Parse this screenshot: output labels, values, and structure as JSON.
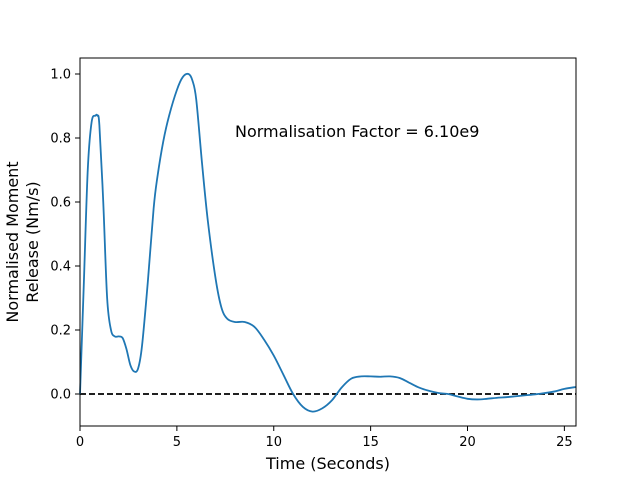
{
  "chart_data": {
    "type": "line",
    "title": "",
    "xlabel": "Time (Seconds)",
    "ylabel_lines": [
      "Normalised Moment",
      "Release (Nm/s)"
    ],
    "xlim": [
      0,
      25.6
    ],
    "ylim": [
      -0.1,
      1.05
    ],
    "xticks": [
      0,
      5,
      10,
      15,
      20,
      25
    ],
    "yticks": [
      0.0,
      0.2,
      0.4,
      0.6,
      0.8,
      1.0
    ],
    "xtick_labels": [
      "0",
      "5",
      "10",
      "15",
      "20",
      "25"
    ],
    "ytick_labels": [
      "0.0",
      "0.2",
      "0.4",
      "0.6",
      "0.8",
      "1.0"
    ],
    "grid": false,
    "annotation": "Normalisation Factor = 6.10e9",
    "reference_line": {
      "y": 0.0,
      "style": "dashed",
      "color": "#000000"
    },
    "series": [
      {
        "color": "#1f77b4",
        "x": [
          0,
          0.2,
          0.4,
          0.6,
          0.8,
          0.9,
          1.0,
          1.2,
          1.4,
          1.6,
          1.8,
          2.0,
          2.2,
          2.4,
          2.6,
          2.8,
          3.0,
          3.2,
          3.5,
          3.8,
          4.0,
          4.3,
          4.6,
          5.0,
          5.3,
          5.6,
          5.8,
          6.0,
          6.3,
          6.6,
          7.0,
          7.3,
          7.6,
          8.0,
          8.5,
          9.0,
          9.5,
          10.0,
          10.5,
          11.0,
          11.5,
          12.0,
          12.5,
          13.0,
          13.5,
          14.0,
          14.5,
          15.0,
          15.5,
          16.0,
          16.5,
          17.0,
          17.5,
          18.0,
          18.5,
          19.0,
          19.5,
          20.0,
          20.5,
          21.0,
          21.5,
          22.0,
          22.5,
          23.0,
          23.5,
          24.0,
          24.5,
          25.0,
          25.6
        ],
        "y": [
          0.0,
          0.35,
          0.7,
          0.85,
          0.87,
          0.87,
          0.84,
          0.6,
          0.3,
          0.2,
          0.18,
          0.18,
          0.175,
          0.14,
          0.09,
          0.07,
          0.08,
          0.15,
          0.35,
          0.58,
          0.68,
          0.79,
          0.87,
          0.95,
          0.99,
          1.0,
          0.98,
          0.92,
          0.72,
          0.54,
          0.36,
          0.27,
          0.235,
          0.225,
          0.225,
          0.21,
          0.17,
          0.12,
          0.06,
          0.0,
          -0.04,
          -0.055,
          -0.045,
          -0.02,
          0.02,
          0.048,
          0.055,
          0.055,
          0.054,
          0.055,
          0.05,
          0.035,
          0.02,
          0.01,
          0.003,
          0.0,
          -0.008,
          -0.015,
          -0.017,
          -0.015,
          -0.012,
          -0.01,
          -0.007,
          -0.004,
          -0.001,
          0.003,
          0.008,
          0.016,
          0.022
        ]
      }
    ]
  }
}
